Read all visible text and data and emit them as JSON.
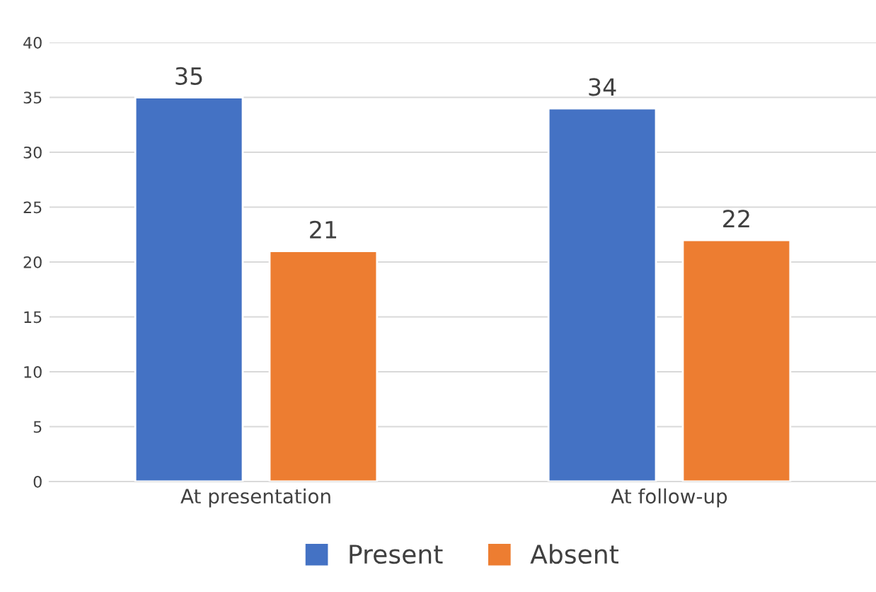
{
  "chart_data": {
    "type": "bar",
    "categories": [
      "At presentation",
      "At follow-up"
    ],
    "series": [
      {
        "name": "Present",
        "color": "#4472c4",
        "values": [
          35,
          34
        ]
      },
      {
        "name": "Absent",
        "color": "#ed7d31",
        "values": [
          21,
          22
        ]
      }
    ],
    "ylim": [
      0,
      40
    ],
    "yticks": [
      0,
      5,
      10,
      15,
      20,
      25,
      30,
      35,
      40
    ],
    "grid": "y",
    "legend": "bottom",
    "data_labels": true
  }
}
